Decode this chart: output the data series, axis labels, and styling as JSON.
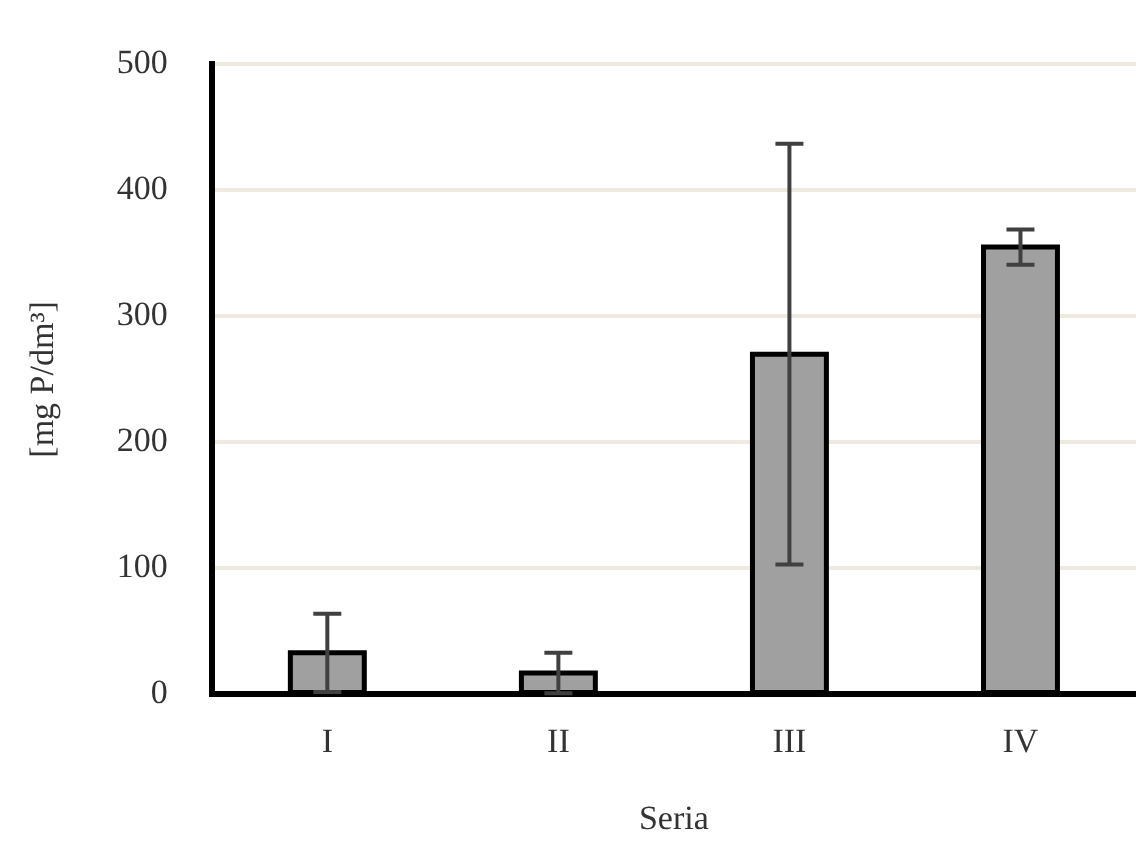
{
  "chart_data": {
    "type": "bar",
    "xlabel": "Seria",
    "ylabel": "[mg P/dm³]",
    "categories": [
      "I",
      "II",
      "III",
      "IV"
    ],
    "values": [
      33,
      17,
      270,
      355
    ],
    "errors": [
      31,
      16,
      167,
      14
    ],
    "color": "#a0a0a0",
    "ylim": [
      0,
      500
    ],
    "yticks": [
      0,
      100,
      200,
      300,
      400,
      500
    ],
    "grid": "y"
  }
}
